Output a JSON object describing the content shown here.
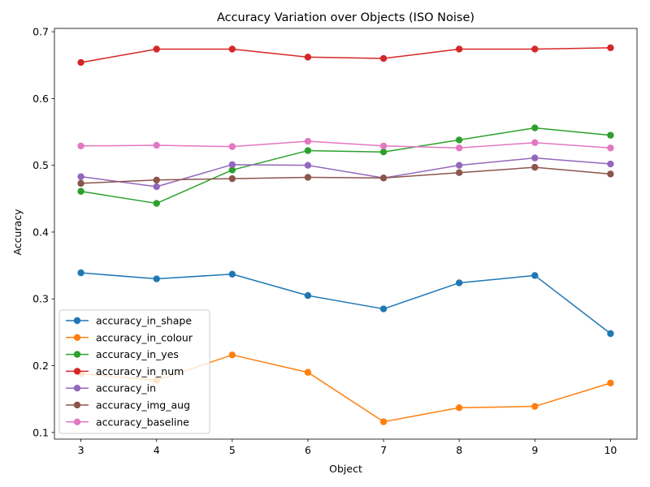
{
  "chart_data": {
    "type": "line",
    "title": "Accuracy Variation over Objects (ISO Noise)",
    "xlabel": "Object",
    "ylabel": "Accuracy",
    "x": [
      3,
      4,
      5,
      6,
      7,
      8,
      9,
      10
    ],
    "xlim": [
      2.65,
      10.35
    ],
    "ylim": [
      0.09,
      0.705
    ],
    "yticks": [
      0.1,
      0.2,
      0.3,
      0.4,
      0.5,
      0.6,
      0.7
    ],
    "ytick_labels": [
      "0.1",
      "0.2",
      "0.3",
      "0.4",
      "0.5",
      "0.6",
      "0.7"
    ],
    "xtick_labels": [
      "3",
      "4",
      "5",
      "6",
      "7",
      "8",
      "9",
      "10"
    ],
    "grid": false,
    "legend_position": "lower-left",
    "series": [
      {
        "name": "accuracy_in_shape",
        "color": "#1f77b4",
        "values": [
          0.339,
          0.33,
          0.337,
          0.305,
          0.285,
          0.324,
          0.335,
          0.248
        ]
      },
      {
        "name": "accuracy_in_colour",
        "color": "#ff7f0e",
        "values": [
          0.188,
          0.178,
          0.216,
          0.19,
          0.116,
          0.137,
          0.139,
          0.174
        ]
      },
      {
        "name": "accuracy_in_yes",
        "color": "#2ca02c",
        "values": [
          0.461,
          0.443,
          0.493,
          0.522,
          0.52,
          0.538,
          0.556,
          0.545
        ]
      },
      {
        "name": "accuracy_in_num",
        "color": "#d62728",
        "values": [
          0.654,
          0.674,
          0.674,
          0.662,
          0.66,
          0.674,
          0.674,
          0.676
        ]
      },
      {
        "name": "accuracy_in",
        "color": "#9467bd",
        "values": [
          0.483,
          0.468,
          0.501,
          0.5,
          0.481,
          0.5,
          0.511,
          0.502
        ]
      },
      {
        "name": "accuracy_img_aug",
        "color": "#8c564b",
        "values": [
          0.473,
          0.478,
          0.48,
          0.482,
          0.481,
          0.489,
          0.497,
          0.487
        ]
      },
      {
        "name": "accuracy_baseline",
        "color": "#e377c2",
        "values": [
          0.529,
          0.53,
          0.528,
          0.536,
          0.529,
          0.526,
          0.534,
          0.526
        ]
      }
    ]
  }
}
